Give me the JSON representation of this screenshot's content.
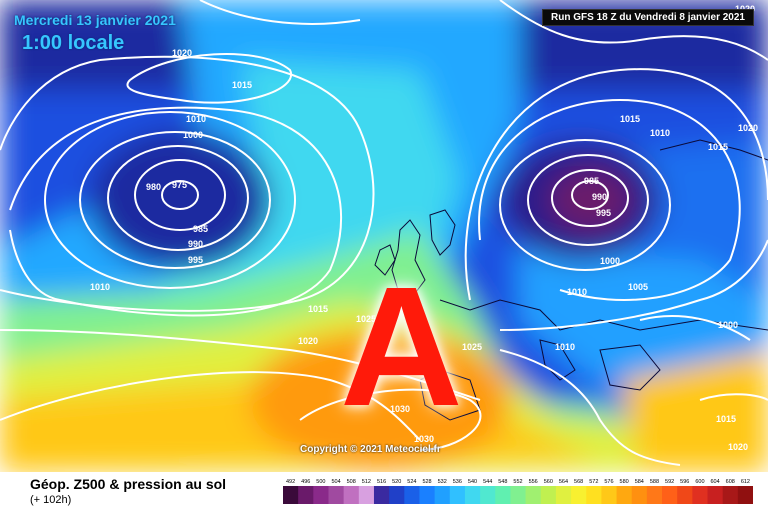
{
  "header": {
    "date": "Mercredi 13 janvier 2021",
    "time": "1:00 locale",
    "run": "Run GFS 18 Z du Vendredi 8 janvier 2021"
  },
  "footer": {
    "title": "Géop. Z500 & pression au sol",
    "subtitle": "(+ 102h)"
  },
  "copyright": "Copyright © 2021 Meteociel.fr",
  "anticyclone_letter": "A",
  "isobar_labels": [
    "1020",
    "1015",
    "1010",
    "1000",
    "980",
    "975",
    "985",
    "990",
    "995",
    "1010",
    "1015",
    "1020",
    "1025",
    "1020",
    "1030",
    "1030",
    "1025",
    "985",
    "990",
    "995",
    "1000",
    "1015",
    "1010",
    "1015",
    "1020",
    "1010",
    "1005",
    "1010",
    "1000",
    "1015",
    "1020"
  ],
  "legend": {
    "labels": [
      "492",
      "496",
      "500",
      "504",
      "508",
      "512",
      "516",
      "520",
      "524",
      "528",
      "532",
      "536",
      "540",
      "544",
      "548",
      "552",
      "556",
      "560",
      "564",
      "568",
      "572",
      "576",
      "580",
      "584",
      "588",
      "592",
      "596",
      "600",
      "604",
      "608",
      "612"
    ],
    "colors": [
      "#3a0a3a",
      "#6a1a6a",
      "#8a2a8a",
      "#a04aa0",
      "#c070c0",
      "#d8a0e0",
      "#3a2aa0",
      "#2040c8",
      "#1a60e8",
      "#1a80ff",
      "#20a0ff",
      "#30c0ff",
      "#40d8f0",
      "#50e8d0",
      "#60f0b0",
      "#80f090",
      "#a0f070",
      "#c0f050",
      "#e0f040",
      "#f8f030",
      "#ffe020",
      "#ffc818",
      "#ffa810",
      "#ff9010",
      "#ff7818",
      "#ff6018",
      "#f04818",
      "#e03020",
      "#c82020",
      "#a81818",
      "#901010"
    ]
  }
}
